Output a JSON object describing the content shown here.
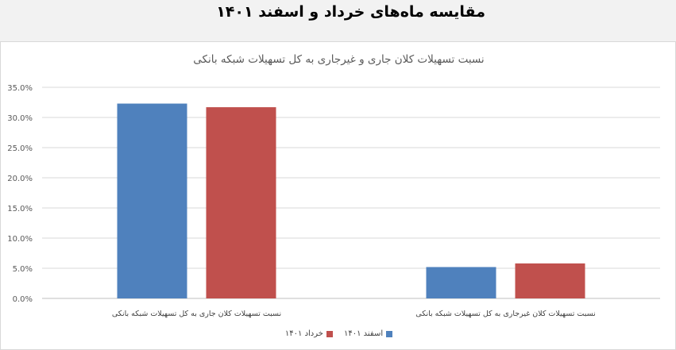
{
  "page": {
    "title": "مقایسه ماه‌های خرداد و اسفند ۱۴۰۱"
  },
  "chart_data": {
    "type": "bar",
    "title": "نسبت تسهیلات کلان جاری و غیرجاری به کل تسهیلات شبکه بانکی",
    "xlabel": "",
    "ylabel": "",
    "categories": [
      "نسبت تسهیلات کلان جاری به کل تسهیلات شبکه بانکی",
      "نسبت تسهیلات کلان غیرجاری به کل تسهیلات شبکه بانکی"
    ],
    "series": [
      {
        "name": "اسفند ۱۴۰۱",
        "color": "#4f81bd",
        "values": [
          32.3,
          5.2
        ]
      },
      {
        "name": "خرداد ۱۴۰۱",
        "color": "#c0504d",
        "values": [
          31.7,
          5.8
        ]
      }
    ],
    "ylim": [
      0,
      35
    ],
    "yticks": [
      "0.0%",
      "5.0%",
      "10.0%",
      "15.0%",
      "20.0%",
      "25.0%",
      "30.0%",
      "35.0%"
    ],
    "grid": true,
    "legend_position": "bottom"
  }
}
